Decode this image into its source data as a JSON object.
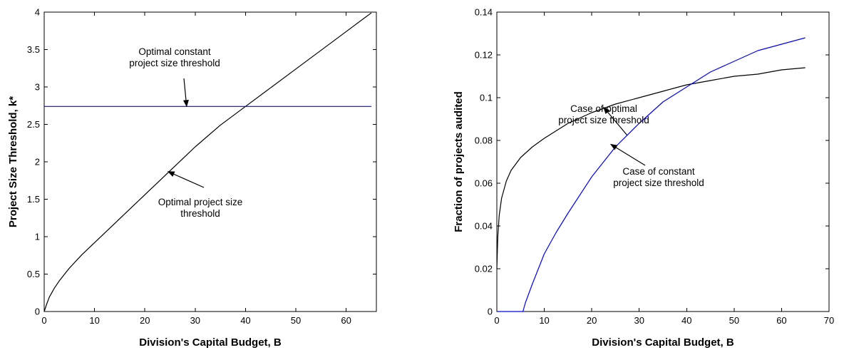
{
  "chart_data": [
    {
      "type": "line",
      "title": "",
      "xlabel": "Division's Capital Budget, B",
      "ylabel": "Project Size Threshold, k*",
      "xlim": [
        0,
        66
      ],
      "ylim": [
        0,
        4
      ],
      "xticks": [
        0,
        10,
        20,
        30,
        40,
        50,
        60
      ],
      "yticks": [
        0,
        0.5,
        1,
        1.5,
        2,
        2.5,
        3,
        3.5,
        4
      ],
      "grid": false,
      "series": [
        {
          "name": "Optimal project size threshold",
          "color": "#000000",
          "x": [
            0,
            0.5,
            1,
            2,
            3,
            5,
            7.5,
            10,
            15,
            20,
            25,
            30,
            35,
            40,
            45,
            50,
            55,
            60,
            65
          ],
          "y": [
            0,
            0.1,
            0.19,
            0.31,
            0.41,
            0.58,
            0.76,
            0.92,
            1.24,
            1.56,
            1.88,
            2.2,
            2.49,
            2.74,
            2.99,
            3.24,
            3.49,
            3.74,
            3.99
          ]
        },
        {
          "name": "Optimal constant project size threshold",
          "color": "#0000ff",
          "x": [
            0,
            65
          ],
          "y": [
            2.74,
            2.74
          ]
        }
      ],
      "annotations": [
        {
          "lines": [
            "Optimal constant",
            "project size threshold"
          ],
          "arrow_to": [
            28.3,
            2.74
          ]
        },
        {
          "lines": [
            "Optimal project size",
            "threshold"
          ],
          "arrow_to": [
            24.6,
            1.87
          ]
        }
      ]
    },
    {
      "type": "line",
      "title": "",
      "xlabel": "Division's Capital Budget, B",
      "ylabel": "Fraction of projects audited",
      "xlim": [
        0,
        70
      ],
      "ylim": [
        0,
        0.14
      ],
      "xticks": [
        0,
        10,
        20,
        30,
        40,
        50,
        60,
        70
      ],
      "yticks": [
        0,
        0.02,
        0.04,
        0.06,
        0.08,
        0.1,
        0.12,
        0.14
      ],
      "grid": false,
      "series": [
        {
          "name": "Case of optimal project size threshold",
          "color": "#000000",
          "x": [
            0,
            0.2,
            0.5,
            1,
            2,
            3,
            5,
            7.5,
            10,
            15,
            20,
            25,
            30,
            35,
            40,
            45,
            50,
            55,
            60,
            65
          ],
          "y": [
            0.02,
            0.035,
            0.045,
            0.053,
            0.061,
            0.066,
            0.072,
            0.077,
            0.081,
            0.088,
            0.093,
            0.097,
            0.1,
            0.103,
            0.106,
            0.108,
            0.11,
            0.111,
            0.113,
            0.114
          ]
        },
        {
          "name": "Case of constant project size threshold",
          "color": "#0000ff",
          "x": [
            0,
            5.5,
            6,
            7.5,
            10,
            12.5,
            15,
            20,
            25,
            30,
            35,
            40,
            45,
            50,
            55,
            60,
            65
          ],
          "y": [
            0,
            0,
            0.004,
            0.013,
            0.027,
            0.037,
            0.046,
            0.063,
            0.077,
            0.088,
            0.098,
            0.105,
            0.112,
            0.117,
            0.122,
            0.125,
            0.128
          ]
        }
      ],
      "annotations": [
        {
          "lines": [
            "Case of optimal",
            "project size threshold"
          ],
          "arrow_to": [
            22.5,
            0.0955
          ]
        },
        {
          "lines": [
            "Case of constant",
            "project size threshold"
          ],
          "arrow_to": [
            24,
            0.0782
          ]
        }
      ]
    }
  ]
}
